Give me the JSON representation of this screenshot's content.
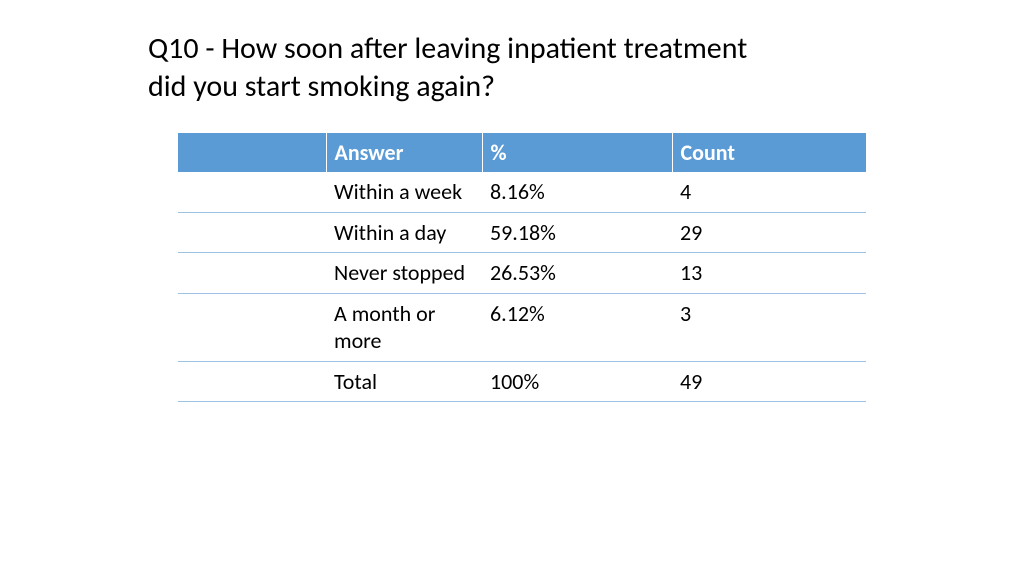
{
  "title": "Q10 - How soon after leaving inpatient treatment did you start smoking again?",
  "table": {
    "type": "table",
    "header_bg": "#5b9bd5",
    "header_fg": "#ffffff",
    "border_color": "#9cc2e5",
    "font_size": 22,
    "columns": [
      "",
      "Answer",
      "%",
      "Count"
    ],
    "rows": [
      {
        "blank": "",
        "answer": "Within a week",
        "pct": "8.16%",
        "count": "4"
      },
      {
        "blank": "",
        "answer": "Within a day",
        "pct": "59.18%",
        "count": "29"
      },
      {
        "blank": "",
        "answer": "Never stopped",
        "pct": "26.53%",
        "count": "13"
      },
      {
        "blank": "",
        "answer": "A month or more",
        "pct": "6.12%",
        "count": "3"
      },
      {
        "blank": "",
        "answer": "Total",
        "pct": "100%",
        "count": "49"
      }
    ]
  }
}
